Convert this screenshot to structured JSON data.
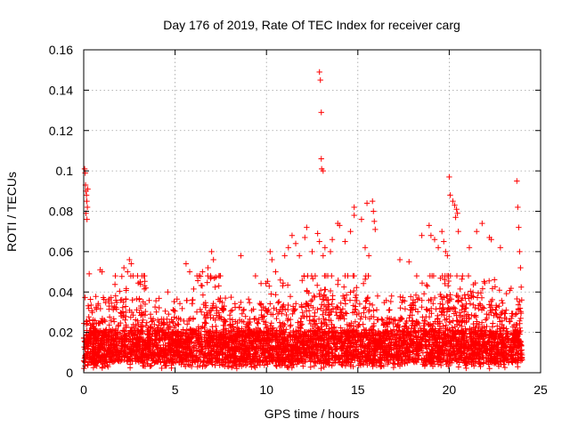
{
  "chart_data": {
    "type": "scatter",
    "title": "Day 176 of 2019, Rate Of TEC Index for receiver carg",
    "xlabel": "GPS time / hours",
    "ylabel": "ROTI / TECUs",
    "xlim": [
      0,
      25
    ],
    "ylim": [
      0,
      0.16
    ],
    "xticks": [
      0,
      5,
      10,
      15,
      20,
      25
    ],
    "yticks": [
      0,
      0.02,
      0.04,
      0.06,
      0.08,
      0.1,
      0.12,
      0.14,
      0.16
    ],
    "xtick_labels": [
      "0",
      "5",
      "10",
      "15",
      "20",
      "25"
    ],
    "ytick_labels": [
      "0",
      "0.02",
      "0.04",
      "0.06",
      "0.08",
      "0.1",
      "0.12",
      "0.14",
      "0.16"
    ],
    "grid": true,
    "marker": "+",
    "color": "#ff0000",
    "series": [
      {
        "name": "ROTI",
        "points": [
          [
            0.05,
            0.101
          ],
          [
            0.08,
            0.099
          ],
          [
            0.1,
            0.093
          ],
          [
            0.12,
            0.09
          ],
          [
            0.15,
            0.088
          ],
          [
            0.17,
            0.085
          ],
          [
            0.2,
            0.082
          ],
          [
            0.12,
            0.079
          ],
          [
            0.18,
            0.076
          ],
          [
            0.22,
            0.091
          ],
          [
            0.3,
            0.049
          ],
          [
            0.9,
            0.051
          ],
          [
            1.0,
            0.05
          ],
          [
            2.2,
            0.052
          ],
          [
            2.4,
            0.05
          ],
          [
            2.5,
            0.056
          ],
          [
            2.6,
            0.054
          ],
          [
            2.7,
            0.048
          ],
          [
            3.1,
            0.045
          ],
          [
            3.4,
            0.042
          ],
          [
            4.6,
            0.04
          ],
          [
            5.6,
            0.054
          ],
          [
            5.8,
            0.05
          ],
          [
            6.2,
            0.048
          ],
          [
            6.5,
            0.05
          ],
          [
            6.8,
            0.052
          ],
          [
            7.0,
            0.06
          ],
          [
            7.1,
            0.056
          ],
          [
            7.4,
            0.048
          ],
          [
            8.6,
            0.058
          ],
          [
            9.4,
            0.048
          ],
          [
            10.2,
            0.06
          ],
          [
            10.3,
            0.056
          ],
          [
            10.5,
            0.05
          ],
          [
            11.0,
            0.058
          ],
          [
            11.2,
            0.062
          ],
          [
            11.4,
            0.068
          ],
          [
            11.6,
            0.064
          ],
          [
            11.8,
            0.058
          ],
          [
            12.2,
            0.072
          ],
          [
            12.1,
            0.067
          ],
          [
            12.5,
            0.06
          ],
          [
            12.9,
            0.149
          ],
          [
            12.95,
            0.145
          ],
          [
            13.0,
            0.129
          ],
          [
            13.0,
            0.106
          ],
          [
            13.02,
            0.101
          ],
          [
            13.1,
            0.1
          ],
          [
            12.8,
            0.069
          ],
          [
            12.9,
            0.065
          ],
          [
            13.2,
            0.062
          ],
          [
            13.1,
            0.058
          ],
          [
            13.5,
            0.06
          ],
          [
            13.6,
            0.066
          ],
          [
            13.9,
            0.074
          ],
          [
            14.0,
            0.073
          ],
          [
            14.3,
            0.065
          ],
          [
            14.6,
            0.07
          ],
          [
            14.8,
            0.078
          ],
          [
            14.8,
            0.082
          ],
          [
            15.2,
            0.076
          ],
          [
            15.5,
            0.084
          ],
          [
            15.8,
            0.085
          ],
          [
            15.85,
            0.08
          ],
          [
            15.9,
            0.075
          ],
          [
            15.95,
            0.071
          ],
          [
            15.4,
            0.062
          ],
          [
            15.6,
            0.058
          ],
          [
            17.3,
            0.056
          ],
          [
            17.8,
            0.055
          ],
          [
            18.5,
            0.068
          ],
          [
            18.9,
            0.073
          ],
          [
            19.0,
            0.068
          ],
          [
            19.2,
            0.066
          ],
          [
            19.4,
            0.062
          ],
          [
            19.6,
            0.07
          ],
          [
            19.7,
            0.065
          ],
          [
            19.8,
            0.06
          ],
          [
            19.9,
            0.058
          ],
          [
            20.0,
            0.097
          ],
          [
            20.05,
            0.088
          ],
          [
            20.2,
            0.085
          ],
          [
            20.3,
            0.083
          ],
          [
            20.4,
            0.081
          ],
          [
            20.35,
            0.077
          ],
          [
            20.45,
            0.079
          ],
          [
            20.5,
            0.07
          ],
          [
            21.1,
            0.062
          ],
          [
            21.5,
            0.07
          ],
          [
            21.8,
            0.074
          ],
          [
            22.2,
            0.067
          ],
          [
            22.3,
            0.066
          ],
          [
            22.8,
            0.062
          ],
          [
            23.7,
            0.095
          ],
          [
            23.75,
            0.082
          ],
          [
            23.8,
            0.072
          ],
          [
            23.85,
            0.06
          ],
          [
            23.9,
            0.052
          ]
        ]
      }
    ]
  }
}
